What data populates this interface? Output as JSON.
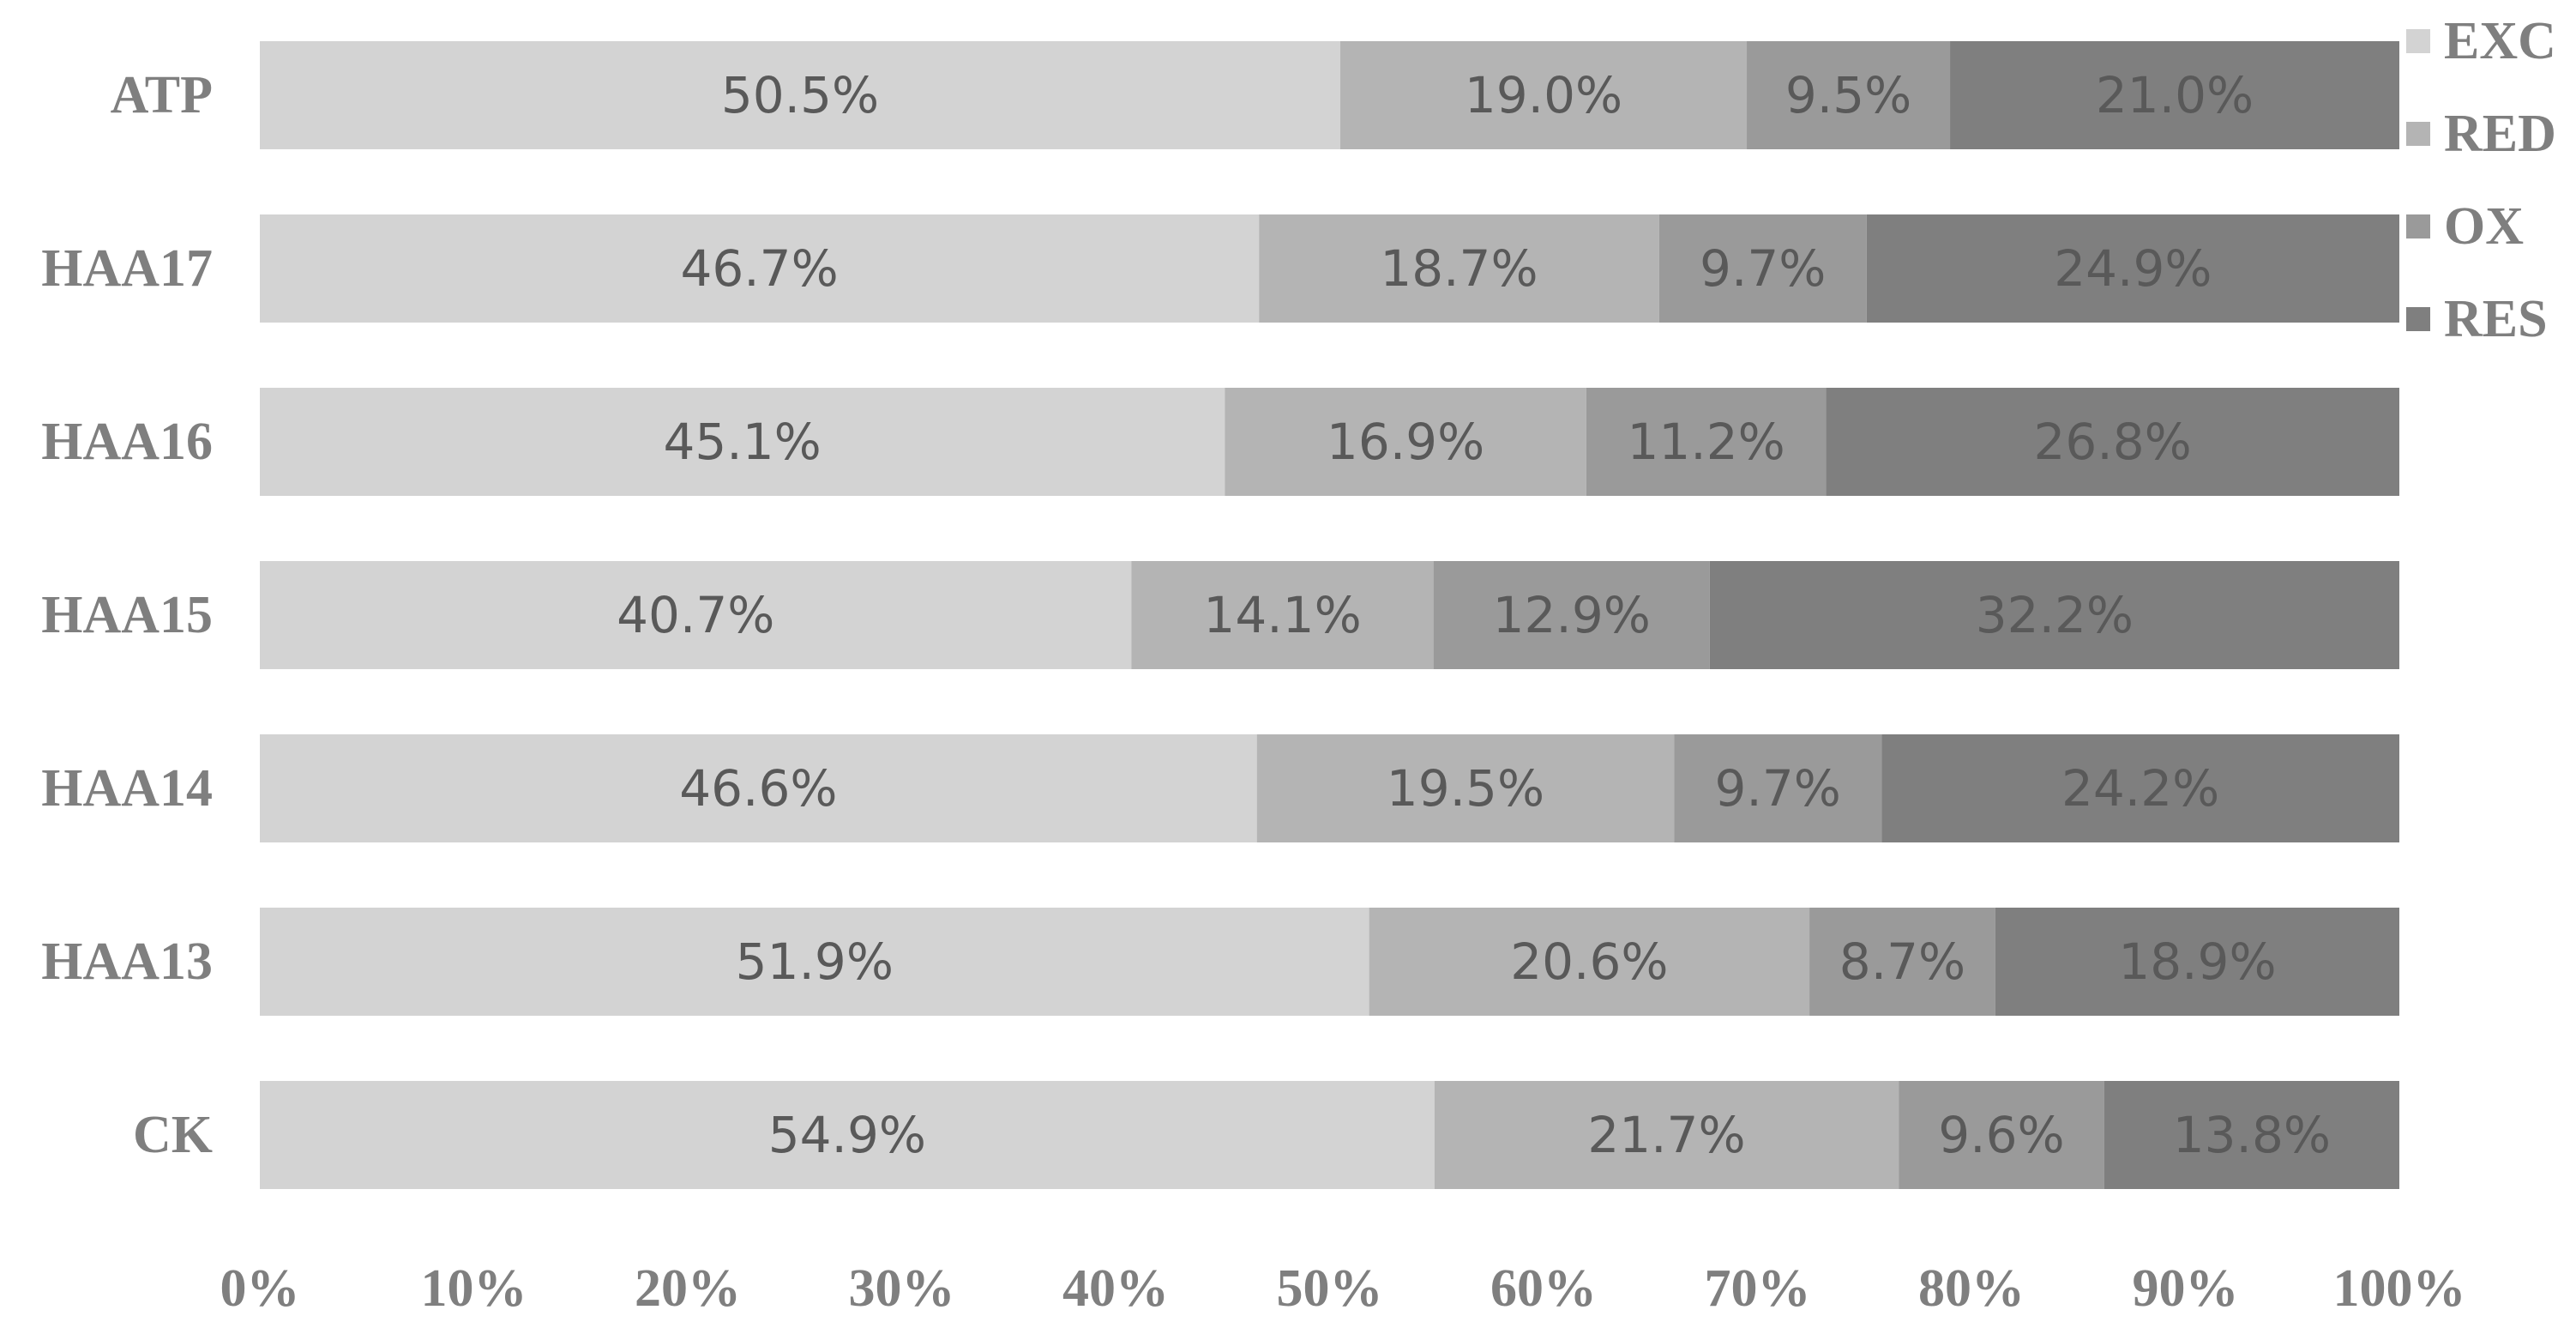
{
  "chart_data": {
    "type": "bar",
    "orientation": "horizontal",
    "stacked": "percent",
    "title": "",
    "xlabel": "",
    "ylabel": "",
    "xlim": [
      0,
      100
    ],
    "x_ticks": [
      "0%",
      "10%",
      "20%",
      "30%",
      "40%",
      "50%",
      "60%",
      "70%",
      "80%",
      "90%",
      "100%"
    ],
    "categories": [
      "ATP",
      "HAA17",
      "HAA16",
      "HAA15",
      "HAA14",
      "HAA13",
      "CK"
    ],
    "series": [
      {
        "name": "EXC",
        "color": "#d3d3d3",
        "values": [
          50.5,
          46.7,
          45.1,
          40.7,
          46.6,
          51.9,
          54.9
        ],
        "labels": [
          "50.5%",
          "46.7%",
          "45.1%",
          "40.7%",
          "46.6%",
          "51.9%",
          "54.9%"
        ]
      },
      {
        "name": "RED",
        "color": "#b4b4b4",
        "values": [
          19.0,
          18.7,
          16.9,
          14.1,
          19.5,
          20.6,
          21.7
        ],
        "labels": [
          "19.0%",
          "18.7%",
          "16.9%",
          "14.1%",
          "19.5%",
          "20.6%",
          "21.7%"
        ]
      },
      {
        "name": "OX",
        "color": "#9a9a9a",
        "values": [
          9.5,
          9.7,
          11.2,
          12.9,
          9.7,
          8.7,
          9.6
        ],
        "labels": [
          "9.5%",
          "9.7%",
          "11.2%",
          "12.9%",
          "9.7%",
          "8.7%",
          "9.6%"
        ]
      },
      {
        "name": "RES",
        "color": "#7f7f7f",
        "values": [
          21.0,
          24.9,
          26.8,
          32.2,
          24.2,
          18.9,
          13.8
        ],
        "labels": [
          "21.0%",
          "24.9%",
          "26.8%",
          "32.2%",
          "24.2%",
          "18.9%",
          "13.8%"
        ]
      }
    ],
    "legend": "top-right",
    "grid": false
  }
}
